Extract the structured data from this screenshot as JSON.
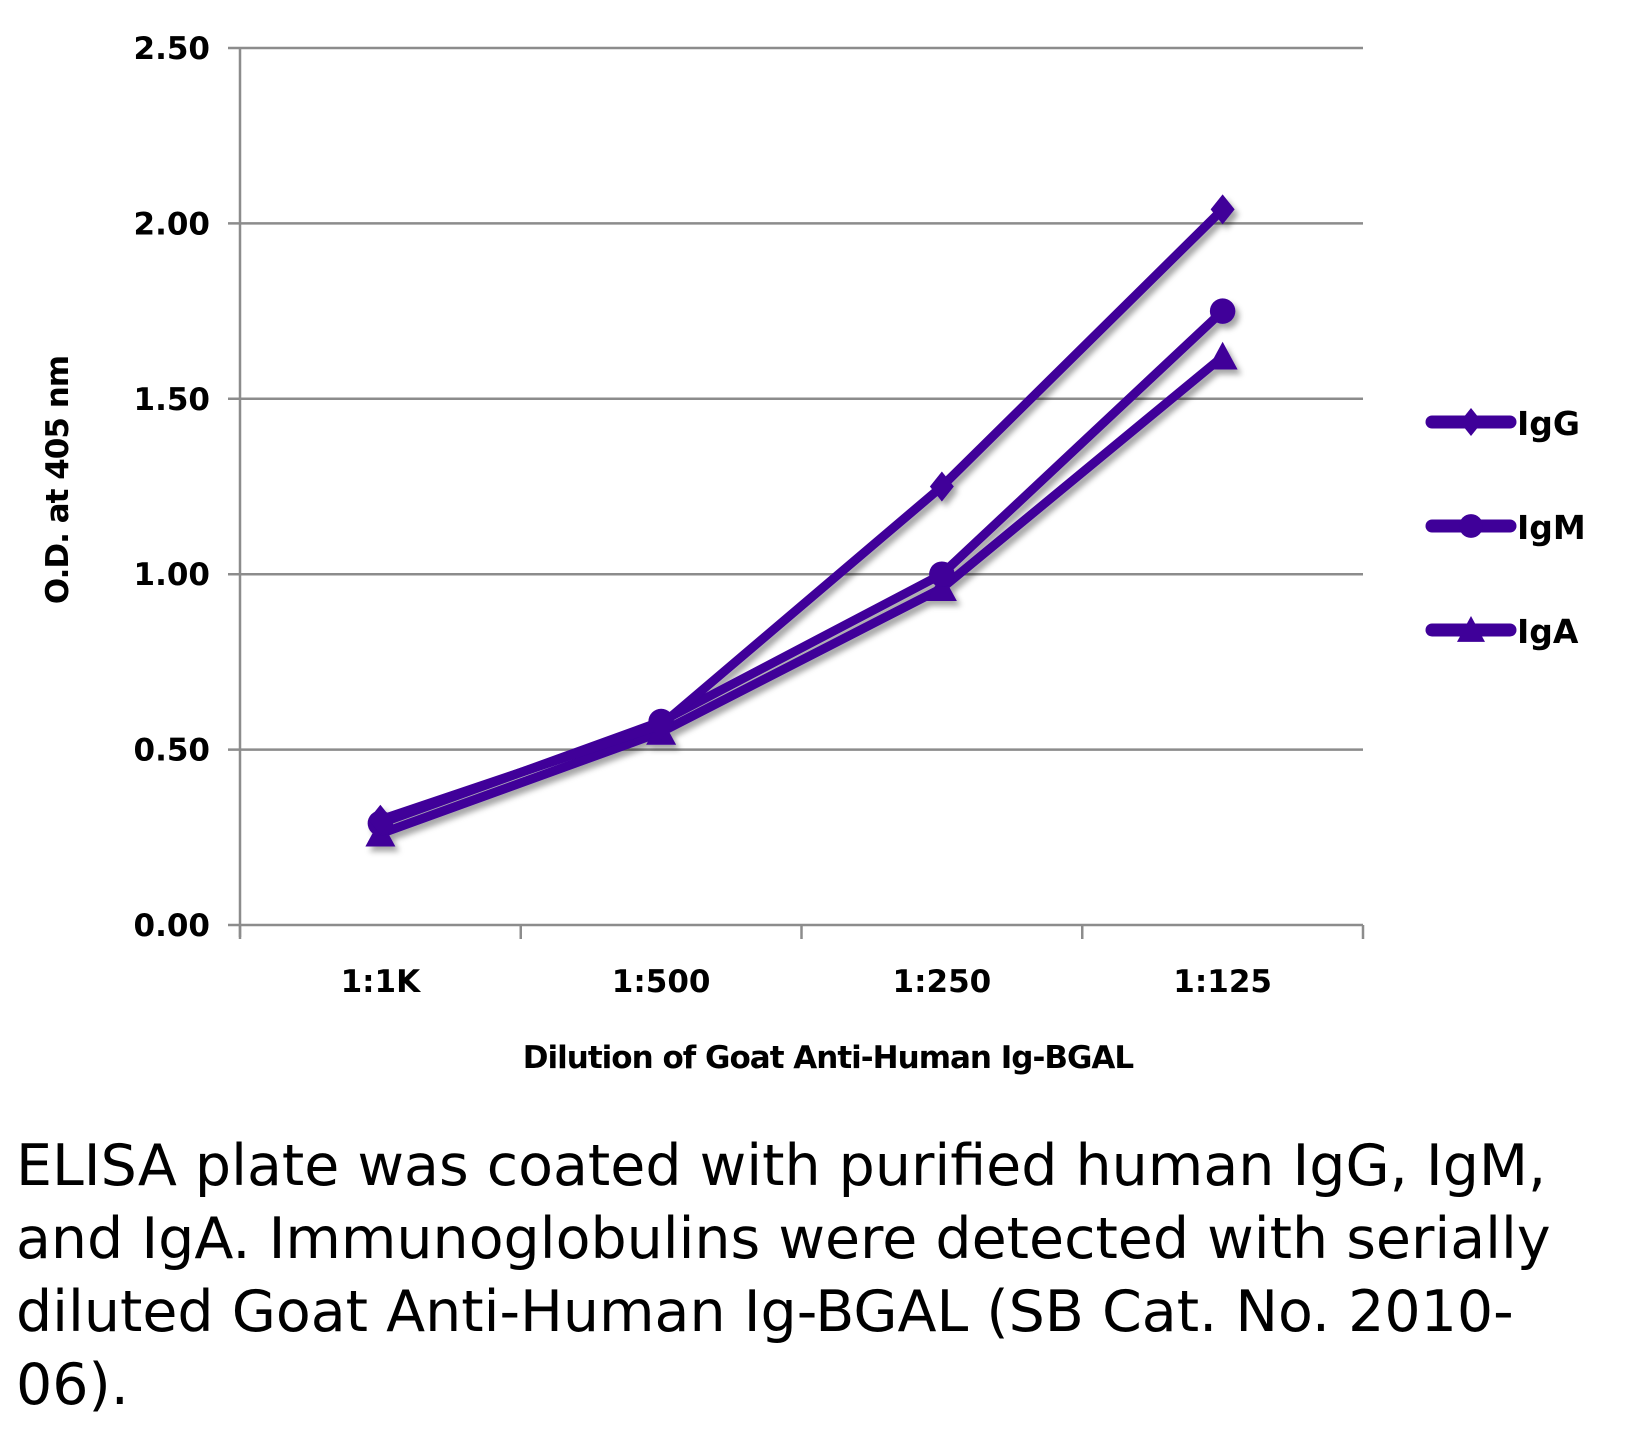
{
  "chart_data": {
    "type": "line",
    "title": "",
    "xlabel": "Dilution of Goat Anti-Human Ig-BGAL",
    "ylabel": "O.D. at 405 nm",
    "categories": [
      "1:1K",
      "1:500",
      "1:250",
      "1:125"
    ],
    "ylim": [
      0,
      2.5
    ],
    "yticks": [
      "0.00",
      "0.50",
      "1.00",
      "1.50",
      "2.00",
      "2.50"
    ],
    "grid": true,
    "legend_position": "right",
    "series": [
      {
        "name": "IgG",
        "marker": "diamond",
        "color": "#3f0099",
        "values": [
          0.3,
          0.57,
          1.25,
          2.04
        ]
      },
      {
        "name": "IgM",
        "marker": "circle",
        "color": "#3f0099",
        "values": [
          0.29,
          0.58,
          1.0,
          1.75
        ]
      },
      {
        "name": "IgA",
        "marker": "triangle",
        "color": "#3f0099",
        "values": [
          0.26,
          0.55,
          0.96,
          1.62
        ]
      }
    ]
  },
  "caption": "ELISA plate was coated with purified human IgG, IgM, and IgA.  Immunoglobulins were detected with serially diluted Goat Anti-Human Ig-BGAL (SB Cat. No. 2010-06)."
}
